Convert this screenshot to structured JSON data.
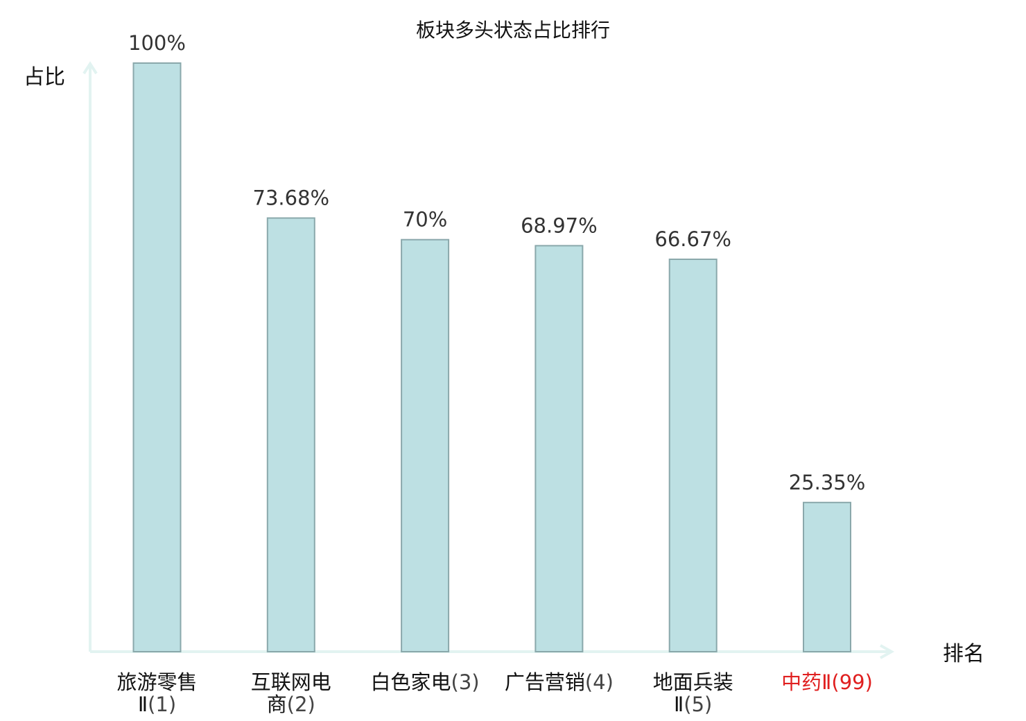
{
  "chart_data": {
    "type": "bar",
    "title": "板块多头状态占比排行",
    "ylabel": "占比",
    "xlabel": "排名",
    "ylim": [
      0,
      100
    ],
    "grid": false,
    "categories": [
      {
        "name_lines": [
          "旅游零售",
          "Ⅱ"
        ],
        "rank": "(1)",
        "highlight": false
      },
      {
        "name_lines": [
          "互联网电",
          "商"
        ],
        "rank": "(2)",
        "highlight": false
      },
      {
        "name_lines": [
          "白色家电"
        ],
        "rank": "(3)",
        "highlight": false
      },
      {
        "name_lines": [
          "广告营销"
        ],
        "rank": "(4)",
        "highlight": false
      },
      {
        "name_lines": [
          "地面兵装",
          "Ⅱ"
        ],
        "rank": "(5)",
        "highlight": false
      },
      {
        "name_lines": [
          "中药Ⅱ"
        ],
        "rank": "(99)",
        "highlight": true
      }
    ],
    "values": [
      100,
      73.68,
      70,
      68.97,
      66.67,
      25.35
    ],
    "value_labels": [
      "100%",
      "73.68%",
      "70%",
      "68.97%",
      "66.67%",
      "25.35%"
    ],
    "colors": {
      "bar_fill": "#bde0e3",
      "bar_stroke": "#8aa8ab",
      "axis": "#e2f3f1",
      "highlight_text": "#e02020"
    }
  }
}
